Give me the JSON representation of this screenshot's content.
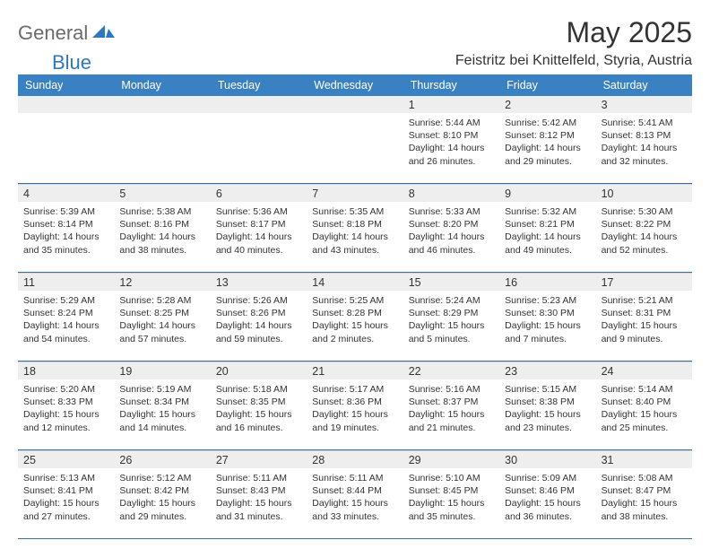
{
  "brand": {
    "part1": "General",
    "part2": "Blue"
  },
  "title": "May 2025",
  "location": "Feistritz bei Knittelfeld, Styria, Austria",
  "colors": {
    "header_bg": "#3a81c4",
    "header_text": "#ffffff",
    "daynum_bg": "#eeeeee",
    "text": "#333333",
    "divider": "#3a6fa5",
    "logo_gray": "#6b6b6b",
    "logo_blue": "#2f78bd",
    "page_bg": "#ffffff"
  },
  "daynames": [
    "Sunday",
    "Monday",
    "Tuesday",
    "Wednesday",
    "Thursday",
    "Friday",
    "Saturday"
  ],
  "weeks": [
    [
      null,
      null,
      null,
      null,
      {
        "n": "1",
        "sunrise": "5:44 AM",
        "sunset": "8:10 PM",
        "d1": "Daylight: 14 hours",
        "d2": "and 26 minutes."
      },
      {
        "n": "2",
        "sunrise": "5:42 AM",
        "sunset": "8:12 PM",
        "d1": "Daylight: 14 hours",
        "d2": "and 29 minutes."
      },
      {
        "n": "3",
        "sunrise": "5:41 AM",
        "sunset": "8:13 PM",
        "d1": "Daylight: 14 hours",
        "d2": "and 32 minutes."
      }
    ],
    [
      {
        "n": "4",
        "sunrise": "5:39 AM",
        "sunset": "8:14 PM",
        "d1": "Daylight: 14 hours",
        "d2": "and 35 minutes."
      },
      {
        "n": "5",
        "sunrise": "5:38 AM",
        "sunset": "8:16 PM",
        "d1": "Daylight: 14 hours",
        "d2": "and 38 minutes."
      },
      {
        "n": "6",
        "sunrise": "5:36 AM",
        "sunset": "8:17 PM",
        "d1": "Daylight: 14 hours",
        "d2": "and 40 minutes."
      },
      {
        "n": "7",
        "sunrise": "5:35 AM",
        "sunset": "8:18 PM",
        "d1": "Daylight: 14 hours",
        "d2": "and 43 minutes."
      },
      {
        "n": "8",
        "sunrise": "5:33 AM",
        "sunset": "8:20 PM",
        "d1": "Daylight: 14 hours",
        "d2": "and 46 minutes."
      },
      {
        "n": "9",
        "sunrise": "5:32 AM",
        "sunset": "8:21 PM",
        "d1": "Daylight: 14 hours",
        "d2": "and 49 minutes."
      },
      {
        "n": "10",
        "sunrise": "5:30 AM",
        "sunset": "8:22 PM",
        "d1": "Daylight: 14 hours",
        "d2": "and 52 minutes."
      }
    ],
    [
      {
        "n": "11",
        "sunrise": "5:29 AM",
        "sunset": "8:24 PM",
        "d1": "Daylight: 14 hours",
        "d2": "and 54 minutes."
      },
      {
        "n": "12",
        "sunrise": "5:28 AM",
        "sunset": "8:25 PM",
        "d1": "Daylight: 14 hours",
        "d2": "and 57 minutes."
      },
      {
        "n": "13",
        "sunrise": "5:26 AM",
        "sunset": "8:26 PM",
        "d1": "Daylight: 14 hours",
        "d2": "and 59 minutes."
      },
      {
        "n": "14",
        "sunrise": "5:25 AM",
        "sunset": "8:28 PM",
        "d1": "Daylight: 15 hours",
        "d2": "and 2 minutes."
      },
      {
        "n": "15",
        "sunrise": "5:24 AM",
        "sunset": "8:29 PM",
        "d1": "Daylight: 15 hours",
        "d2": "and 5 minutes."
      },
      {
        "n": "16",
        "sunrise": "5:23 AM",
        "sunset": "8:30 PM",
        "d1": "Daylight: 15 hours",
        "d2": "and 7 minutes."
      },
      {
        "n": "17",
        "sunrise": "5:21 AM",
        "sunset": "8:31 PM",
        "d1": "Daylight: 15 hours",
        "d2": "and 9 minutes."
      }
    ],
    [
      {
        "n": "18",
        "sunrise": "5:20 AM",
        "sunset": "8:33 PM",
        "d1": "Daylight: 15 hours",
        "d2": "and 12 minutes."
      },
      {
        "n": "19",
        "sunrise": "5:19 AM",
        "sunset": "8:34 PM",
        "d1": "Daylight: 15 hours",
        "d2": "and 14 minutes."
      },
      {
        "n": "20",
        "sunrise": "5:18 AM",
        "sunset": "8:35 PM",
        "d1": "Daylight: 15 hours",
        "d2": "and 16 minutes."
      },
      {
        "n": "21",
        "sunrise": "5:17 AM",
        "sunset": "8:36 PM",
        "d1": "Daylight: 15 hours",
        "d2": "and 19 minutes."
      },
      {
        "n": "22",
        "sunrise": "5:16 AM",
        "sunset": "8:37 PM",
        "d1": "Daylight: 15 hours",
        "d2": "and 21 minutes."
      },
      {
        "n": "23",
        "sunrise": "5:15 AM",
        "sunset": "8:38 PM",
        "d1": "Daylight: 15 hours",
        "d2": "and 23 minutes."
      },
      {
        "n": "24",
        "sunrise": "5:14 AM",
        "sunset": "8:40 PM",
        "d1": "Daylight: 15 hours",
        "d2": "and 25 minutes."
      }
    ],
    [
      {
        "n": "25",
        "sunrise": "5:13 AM",
        "sunset": "8:41 PM",
        "d1": "Daylight: 15 hours",
        "d2": "and 27 minutes."
      },
      {
        "n": "26",
        "sunrise": "5:12 AM",
        "sunset": "8:42 PM",
        "d1": "Daylight: 15 hours",
        "d2": "and 29 minutes."
      },
      {
        "n": "27",
        "sunrise": "5:11 AM",
        "sunset": "8:43 PM",
        "d1": "Daylight: 15 hours",
        "d2": "and 31 minutes."
      },
      {
        "n": "28",
        "sunrise": "5:11 AM",
        "sunset": "8:44 PM",
        "d1": "Daylight: 15 hours",
        "d2": "and 33 minutes."
      },
      {
        "n": "29",
        "sunrise": "5:10 AM",
        "sunset": "8:45 PM",
        "d1": "Daylight: 15 hours",
        "d2": "and 35 minutes."
      },
      {
        "n": "30",
        "sunrise": "5:09 AM",
        "sunset": "8:46 PM",
        "d1": "Daylight: 15 hours",
        "d2": "and 36 minutes."
      },
      {
        "n": "31",
        "sunrise": "5:08 AM",
        "sunset": "8:47 PM",
        "d1": "Daylight: 15 hours",
        "d2": "and 38 minutes."
      }
    ]
  ],
  "labels": {
    "sunrise": "Sunrise: ",
    "sunset": "Sunset: "
  }
}
